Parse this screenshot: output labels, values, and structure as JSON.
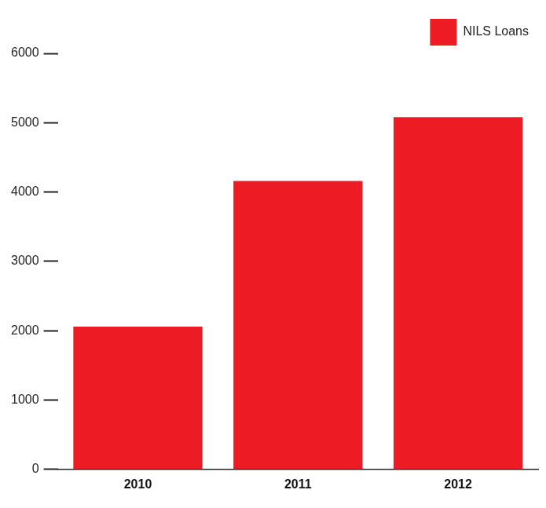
{
  "chart_data": {
    "type": "bar",
    "categories": [
      "2010",
      "2011",
      "2012"
    ],
    "series": [
      {
        "name": "NILS Loans",
        "color": "#ed1c24",
        "values": [
          2060,
          4160,
          5080
        ]
      }
    ],
    "ylim": [
      0,
      6000
    ],
    "yticks": [
      0,
      1000,
      2000,
      3000,
      4000,
      5000,
      6000
    ],
    "grid": false,
    "legend": "upper right"
  }
}
